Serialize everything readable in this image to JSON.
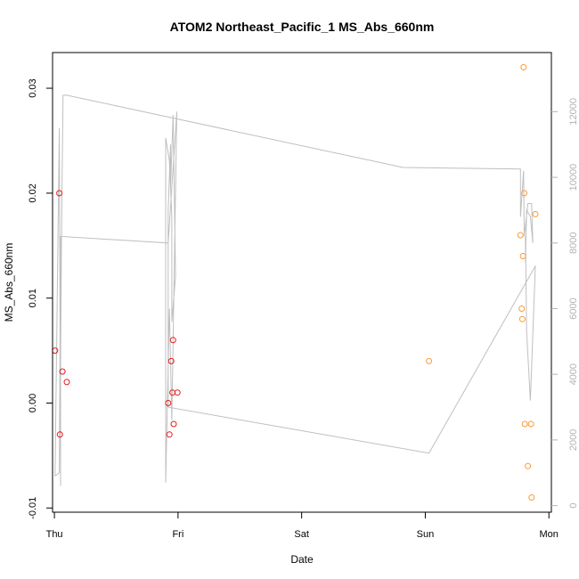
{
  "chart_data": {
    "type": "scatter",
    "title": "ATOM2 Northeast_Pacific_1 MS_Abs_660nm",
    "xlabel": "Date",
    "ylabel": "MS_Abs_660nm",
    "x_ticks": [
      "Thu",
      "Fri",
      "Sat",
      "Sun",
      "Mon"
    ],
    "xlim": [
      -0.015,
      4.02
    ],
    "ylim": [
      -0.0104,
      0.0334
    ],
    "y_ticks": [
      -0.01,
      0.0,
      0.01,
      0.02,
      0.03
    ],
    "y_tick_labels": [
      "-0.01",
      "0.00",
      "0.01",
      "0.02",
      "0.03"
    ],
    "y2lim": [
      -200,
      13800
    ],
    "y2_ticks": [
      0,
      2000,
      4000,
      6000,
      8000,
      10000,
      12000
    ],
    "y2_tick_labels": [
      "0",
      "2000",
      "4000",
      "6000",
      "8000",
      "10000",
      "12000"
    ],
    "colors": {
      "series1": "#e41a1c",
      "series2": "#ff9933",
      "depth_line": "#bfbfbf",
      "axis": "#000000",
      "right_axis": "#b3b3b3"
    },
    "series": [
      {
        "color": "#e41a1c",
        "points": [
          {
            "x": 0.005,
            "y": 0.005
          },
          {
            "x": 0.04,
            "y": 0.02
          },
          {
            "x": 0.045,
            "y": -0.003
          },
          {
            "x": 0.065,
            "y": 0.003
          },
          {
            "x": 0.1,
            "y": 0.002
          },
          {
            "x": 0.92,
            "y": 0.0
          },
          {
            "x": 0.93,
            "y": -0.003
          },
          {
            "x": 0.945,
            "y": 0.004
          },
          {
            "x": 0.955,
            "y": 0.001
          },
          {
            "x": 0.96,
            "y": 0.006
          },
          {
            "x": 0.965,
            "y": -0.002
          },
          {
            "x": 0.995,
            "y": 0.001
          }
        ]
      },
      {
        "color": "#ff9933",
        "points": [
          {
            "x": 3.03,
            "y": 0.004
          },
          {
            "x": 3.77,
            "y": 0.016
          },
          {
            "x": 3.78,
            "y": 0.009
          },
          {
            "x": 3.785,
            "y": 0.008
          },
          {
            "x": 3.79,
            "y": 0.014
          },
          {
            "x": 3.795,
            "y": 0.032
          },
          {
            "x": 3.8,
            "y": 0.02
          },
          {
            "x": 3.805,
            "y": -0.002
          },
          {
            "x": 3.83,
            "y": -0.006
          },
          {
            "x": 3.855,
            "y": -0.002
          },
          {
            "x": 3.86,
            "y": -0.009
          },
          {
            "x": 3.89,
            "y": 0.018
          }
        ]
      }
    ],
    "depth_line": {
      "axis": "right",
      "x": [
        0.005,
        0.04,
        0.05,
        0.05,
        0.06,
        0.07,
        0.09,
        0.1,
        2.82,
        3.77,
        3.77,
        3.795,
        3.8,
        3.83,
        3.86,
        3.87,
        3.85,
        3.82,
        3.81,
        3.81,
        3.82,
        3.85,
        3.89,
        3.03,
        0.92,
        0.92,
        0.94,
        0.94,
        0.96,
        0.98,
        0.95,
        0.95,
        0.93,
        0.9,
        0.9,
        0.93,
        0.95,
        0.99,
        0.92,
        0.05,
        0.04,
        0.005
      ],
      "y": [
        900,
        11500,
        600,
        4400,
        9200,
        12500,
        12500,
        12500,
        10300,
        10250,
        8800,
        10200,
        8200,
        9200,
        9200,
        8000,
        8800,
        9000,
        7400,
        8200,
        5300,
        3200,
        7300,
        1600,
        3000,
        9000,
        11000,
        9700,
        11900,
        7000,
        5600,
        8800,
        10500,
        11200,
        700,
        6000,
        2600,
        12000,
        8000,
        8200,
        1000,
        900
      ]
    }
  }
}
